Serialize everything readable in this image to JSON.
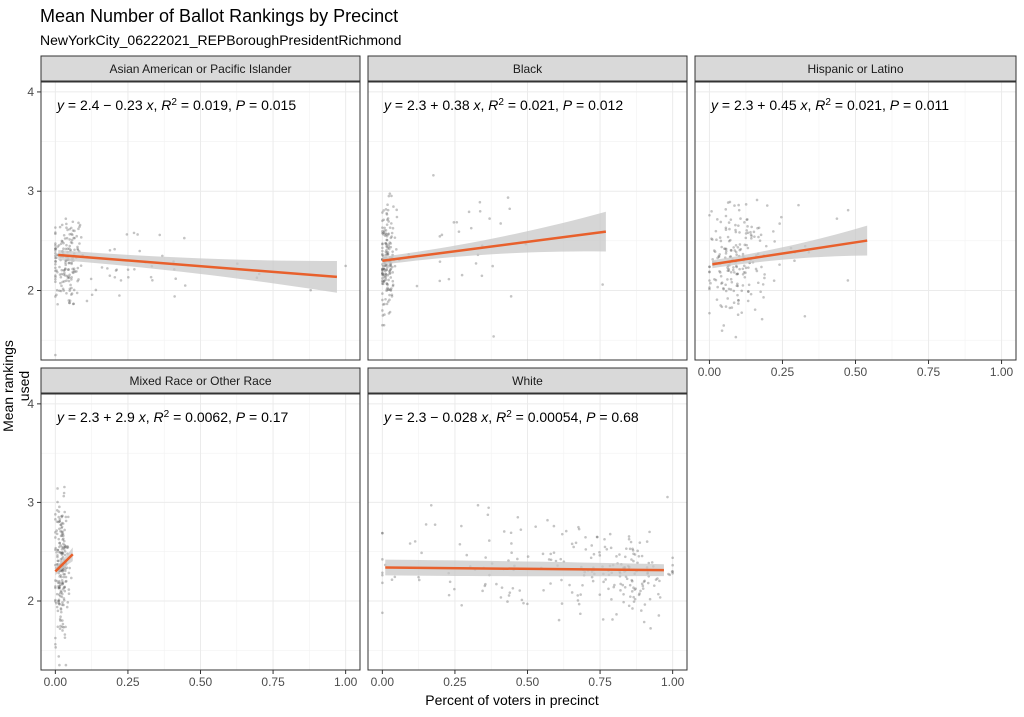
{
  "chart_data": {
    "type": "scatter",
    "title": "Mean Number of Ballot Rankings by Precinct",
    "subtitle": "NewYorkCity_06222021_REPBoroughPresidentRichmond",
    "xlabel": "Percent of voters in precinct",
    "ylabel": "Mean rankings used",
    "xlim": [
      0,
      1
    ],
    "ylim": [
      1.3,
      4.1
    ],
    "x_ticks": [
      "0.00",
      "0.25",
      "0.50",
      "0.75",
      "1.00"
    ],
    "x_tick_values": [
      0,
      0.25,
      0.5,
      0.75,
      1
    ],
    "y_ticks": [
      "2",
      "3",
      "4"
    ],
    "y_tick_values": [
      2,
      3,
      4
    ],
    "trend_color": "#E8602C",
    "ribbon_color": "#C8C8C8",
    "point_color": "#555555",
    "panels": [
      {
        "name": "Asian American or Pacific Islander",
        "eq_y": "y",
        "eq_fit": " = 2.4 − 0.23 ",
        "eq_x": "x",
        "eq_r2": "R",
        "eq_r2_val": " = 0.019, ",
        "eq_p": "P",
        "eq_p_val": " = 0.015",
        "intercept": 2.36,
        "slope": -0.23,
        "x_range": [
          0.01,
          0.97
        ],
        "ci_halfwidth": [
          0.05,
          0.16
        ],
        "cloud": [
          {
            "xc": 0.04,
            "xs": 0.03,
            "yc": 2.3,
            "ys": 0.25,
            "n": 150
          },
          {
            "xc": 0.2,
            "xs": 0.15,
            "yc": 2.25,
            "ys": 0.22,
            "n": 45
          },
          {
            "xc": 0.65,
            "xs": 0.3,
            "yc": 2.1,
            "ys": 0.12,
            "n": 8
          }
        ],
        "x_axis_shown": false,
        "y_axis_shown": true
      },
      {
        "name": "Black",
        "eq_y": "y",
        "eq_fit": " = 2.3 + 0.38 ",
        "eq_x": "x",
        "eq_r2": "R",
        "eq_r2_val": " = 0.021, ",
        "eq_p": "P",
        "eq_p_val": " = 0.012",
        "intercept": 2.3,
        "slope": 0.38,
        "x_range": [
          0.0,
          0.77
        ],
        "ci_halfwidth": [
          0.04,
          0.2
        ],
        "cloud": [
          {
            "xc": 0.015,
            "xs": 0.012,
            "yc": 2.3,
            "ys": 0.28,
            "n": 170
          },
          {
            "xc": 0.2,
            "xs": 0.2,
            "yc": 2.4,
            "ys": 0.3,
            "n": 40
          }
        ],
        "x_axis_shown": false,
        "y_axis_shown": false
      },
      {
        "name": "Hispanic or Latino",
        "eq_y": "y",
        "eq_fit": " = 2.3 + 0.45 ",
        "eq_x": "x",
        "eq_r2": "R",
        "eq_r2_val": " = 0.021, ",
        "eq_p": "P",
        "eq_p_val": " = 0.011",
        "intercept": 2.26,
        "slope": 0.45,
        "x_range": [
          0.01,
          0.54
        ],
        "ci_halfwidth": [
          0.04,
          0.15
        ],
        "cloud": [
          {
            "xc": 0.09,
            "xs": 0.05,
            "yc": 2.3,
            "ys": 0.28,
            "n": 190
          },
          {
            "xc": 0.3,
            "xs": 0.12,
            "yc": 2.4,
            "ys": 0.3,
            "n": 20
          }
        ],
        "x_axis_shown": true,
        "y_axis_shown": false
      },
      {
        "name": "Mixed Race or Other Race",
        "eq_y": "y",
        "eq_fit": " = 2.3 + 2.9 ",
        "eq_x": "x",
        "eq_r2": "R",
        "eq_r2_val": " = 0.0062, ",
        "eq_p": "P",
        "eq_p_val": " = 0.17",
        "intercept": 2.3,
        "slope": 2.9,
        "x_range": [
          0.0,
          0.06
        ],
        "ci_halfwidth": [
          0.04,
          0.07
        ],
        "cloud": [
          {
            "xc": 0.02,
            "xs": 0.012,
            "yc": 2.3,
            "ys": 0.35,
            "n": 210
          }
        ],
        "x_axis_shown": true,
        "y_axis_shown": true
      },
      {
        "name": "White",
        "eq_y": "y",
        "eq_fit": " = 2.3 − 0.028 ",
        "eq_x": "x",
        "eq_r2": "R",
        "eq_r2_val": " = 0.00054, ",
        "eq_p": "P",
        "eq_p_val": " = 0.68",
        "intercept": 2.34,
        "slope": -0.028,
        "x_range": [
          0.01,
          0.97
        ],
        "ci_halfwidth": [
          0.08,
          0.06
        ],
        "cloud": [
          {
            "xc": 0.85,
            "xs": 0.08,
            "yc": 2.3,
            "ys": 0.22,
            "n": 110
          },
          {
            "xc": 0.5,
            "xs": 0.28,
            "yc": 2.35,
            "ys": 0.3,
            "n": 120
          }
        ],
        "x_axis_shown": true,
        "y_axis_shown": false
      }
    ]
  }
}
